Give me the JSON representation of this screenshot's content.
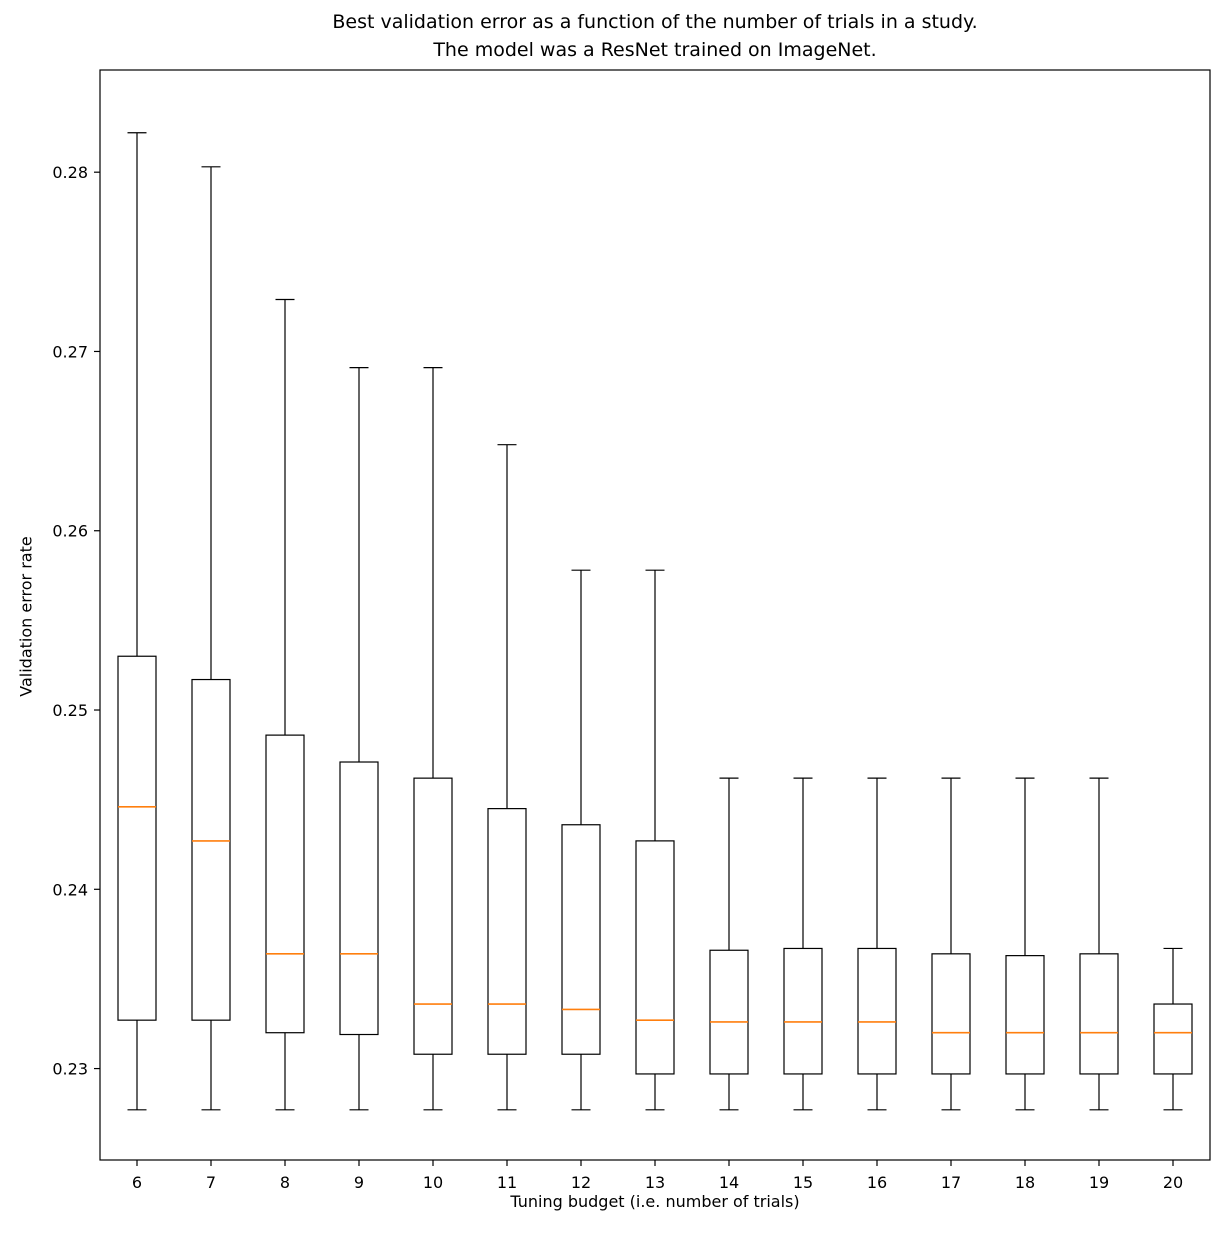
{
  "figure": {
    "title_line1": "Best validation error as a function of the number of trials in a study.",
    "title_line2": "The model was a ResNet trained on ImageNet.",
    "xlabel": "Tuning budget (i.e. number of trials)",
    "ylabel": "Validation error rate"
  },
  "chart_data": {
    "type": "boxplot",
    "title": "Best validation error as a function of the number of trials in a study.\nThe model was a ResNet trained on ImageNet.",
    "xlabel": "Tuning budget (i.e. number of trials)",
    "ylabel": "Validation error rate",
    "categories": [
      "6",
      "7",
      "8",
      "9",
      "10",
      "11",
      "12",
      "13",
      "14",
      "15",
      "16",
      "17",
      "18",
      "19",
      "20"
    ],
    "yticks": [
      0.23,
      0.24,
      0.25,
      0.26,
      0.27,
      0.28
    ],
    "ylim": [
      0.2249,
      0.2857
    ],
    "grid": false,
    "legend": "none",
    "colors": {
      "box_stroke": "#000000",
      "median": "#ff7f0e",
      "axis": "#000000"
    },
    "boxes": [
      {
        "label": "6",
        "whislo": 0.2277,
        "q1": 0.2327,
        "med": 0.2446,
        "q3": 0.253,
        "whishi": 0.2822
      },
      {
        "label": "7",
        "whislo": 0.2277,
        "q1": 0.2327,
        "med": 0.2427,
        "q3": 0.2517,
        "whishi": 0.2803
      },
      {
        "label": "8",
        "whislo": 0.2277,
        "q1": 0.232,
        "med": 0.2364,
        "q3": 0.2486,
        "whishi": 0.2729
      },
      {
        "label": "9",
        "whislo": 0.2277,
        "q1": 0.2319,
        "med": 0.2364,
        "q3": 0.2471,
        "whishi": 0.2691
      },
      {
        "label": "10",
        "whislo": 0.2277,
        "q1": 0.2308,
        "med": 0.2336,
        "q3": 0.2462,
        "whishi": 0.2691
      },
      {
        "label": "11",
        "whislo": 0.2277,
        "q1": 0.2308,
        "med": 0.2336,
        "q3": 0.2445,
        "whishi": 0.2648
      },
      {
        "label": "12",
        "whislo": 0.2277,
        "q1": 0.2308,
        "med": 0.2333,
        "q3": 0.2436,
        "whishi": 0.2578
      },
      {
        "label": "13",
        "whislo": 0.2277,
        "q1": 0.2297,
        "med": 0.2327,
        "q3": 0.2427,
        "whishi": 0.2578
      },
      {
        "label": "14",
        "whislo": 0.2277,
        "q1": 0.2297,
        "med": 0.2326,
        "q3": 0.2366,
        "whishi": 0.2462
      },
      {
        "label": "15",
        "whislo": 0.2277,
        "q1": 0.2297,
        "med": 0.2326,
        "q3": 0.2367,
        "whishi": 0.2462
      },
      {
        "label": "16",
        "whislo": 0.2277,
        "q1": 0.2297,
        "med": 0.2326,
        "q3": 0.2367,
        "whishi": 0.2462
      },
      {
        "label": "17",
        "whislo": 0.2277,
        "q1": 0.2297,
        "med": 0.232,
        "q3": 0.2364,
        "whishi": 0.2462
      },
      {
        "label": "18",
        "whislo": 0.2277,
        "q1": 0.2297,
        "med": 0.232,
        "q3": 0.2363,
        "whishi": 0.2462
      },
      {
        "label": "19",
        "whislo": 0.2277,
        "q1": 0.2297,
        "med": 0.232,
        "q3": 0.2364,
        "whishi": 0.2462
      },
      {
        "label": "20",
        "whislo": 0.2277,
        "q1": 0.2297,
        "med": 0.232,
        "q3": 0.2336,
        "whishi": 0.2367
      }
    ]
  }
}
